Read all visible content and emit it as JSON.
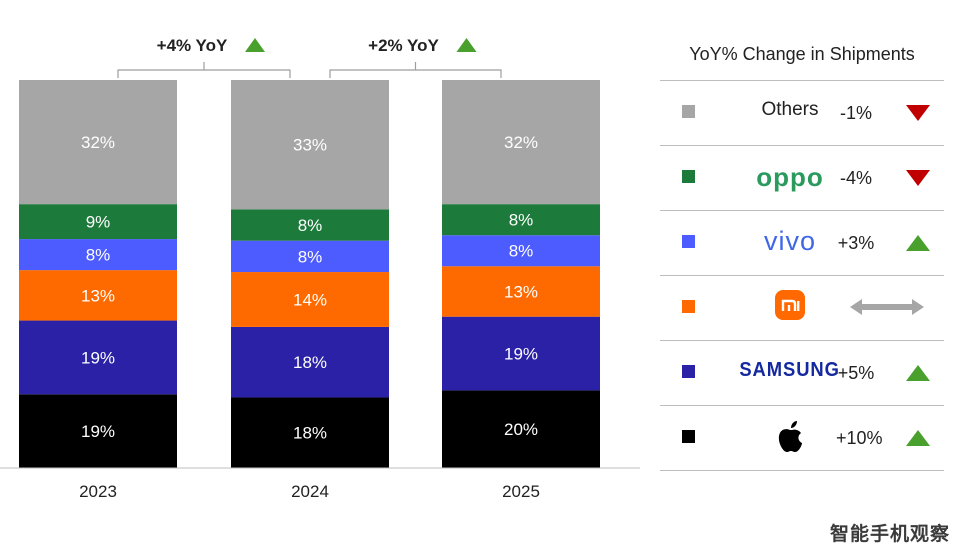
{
  "chart_data": {
    "type": "bar",
    "stacked": true,
    "percent": true,
    "categories": [
      "2023",
      "2024",
      "2025"
    ],
    "series": [
      {
        "name": "Apple",
        "values": [
          19,
          18,
          20
        ],
        "color": "#000000"
      },
      {
        "name": "Samsung",
        "values": [
          19,
          18,
          19
        ],
        "color": "#2a21a6"
      },
      {
        "name": "Xiaomi",
        "values": [
          13,
          14,
          13
        ],
        "color": "#ff6a00"
      },
      {
        "name": "vivo",
        "values": [
          8,
          8,
          8
        ],
        "color": "#4d5cff"
      },
      {
        "name": "OPPO",
        "values": [
          9,
          8,
          8
        ],
        "color": "#1c7a3a"
      },
      {
        "name": "Others",
        "values": [
          32,
          33,
          32
        ],
        "color": "#a6a6a6"
      }
    ],
    "segment_labels": [
      [
        "19%",
        "19%",
        "13%",
        "8%",
        "9%",
        "32%"
      ],
      [
        "18%",
        "18%",
        "14%",
        "8%",
        "8%",
        "33%"
      ],
      [
        "20%",
        "19%",
        "13%",
        "8%",
        "8%",
        "32%"
      ]
    ],
    "yoy_brackets": [
      {
        "label": "+4% YoY",
        "from": "2023",
        "to": "2024",
        "direction": "up"
      },
      {
        "label": "+2% YoY",
        "from": "2024",
        "to": "2025",
        "direction": "up"
      }
    ],
    "grid": false
  },
  "legend": {
    "title": "YoY% Change in Shipments",
    "items": [
      {
        "brand": "Others",
        "brand_kind": "text",
        "color": "#a6a6a6",
        "change": "-1%",
        "trend": "down"
      },
      {
        "brand": "oppo",
        "brand_kind": "oppo",
        "color": "#1c7a3a",
        "change": "-4%",
        "trend": "down"
      },
      {
        "brand": "vivo",
        "brand_kind": "vivo",
        "color": "#4d5cff",
        "change": "+3%",
        "trend": "up"
      },
      {
        "brand": "mi",
        "brand_kind": "xiaomi",
        "color": "#ff6a00",
        "change": "",
        "trend": "flat"
      },
      {
        "brand": "SAMSUNG",
        "brand_kind": "samsung",
        "color": "#2a21a6",
        "change": "+5%",
        "trend": "up"
      },
      {
        "brand": "apple",
        "brand_kind": "apple",
        "color": "#000000",
        "change": "+10%",
        "trend": "up"
      }
    ]
  },
  "colors": {
    "up": "#4aa02c",
    "down": "#c00000",
    "flat": "#a6a6a6"
  },
  "watermark": "智能手机观察"
}
